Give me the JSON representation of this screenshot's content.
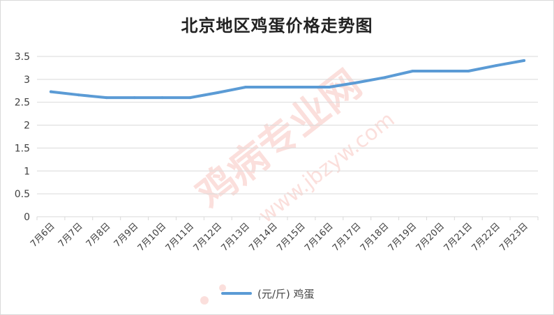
{
  "colors": {
    "series": "#5b9bd5",
    "grid": "#d9d9d9",
    "text": "#404040",
    "watermark": "#e8412c"
  },
  "watermark": {
    "text": "鸡病专业网",
    "url": "www.jbzyw.com"
  },
  "chart_data": {
    "type": "line",
    "title": "北京地区鸡蛋价格走势图",
    "categories": [
      "7月6日",
      "7月7日",
      "7月8日",
      "7月9日",
      "7月10日",
      "7月11日",
      "7月12日",
      "7月13日",
      "7月14日",
      "7月15日",
      "7月16日",
      "7月17日",
      "7月18日",
      "7月19日",
      "7月20日",
      "7月21日",
      "7月22日",
      "7月23日"
    ],
    "series": [
      {
        "name": "(元/斤) 鸡蛋",
        "values": [
          2.73,
          2.66,
          2.6,
          2.6,
          2.6,
          2.6,
          2.71,
          2.83,
          2.83,
          2.83,
          2.83,
          2.93,
          3.04,
          3.18,
          3.18,
          3.18,
          3.3,
          3.41
        ]
      }
    ],
    "ylim": [
      0,
      3.5
    ],
    "yticks": [
      "0",
      "0.5",
      "1",
      "1.5",
      "2",
      "2.5",
      "3",
      "3.5"
    ],
    "xlabel": "",
    "ylabel": "",
    "grid": true,
    "legend": "bottom"
  }
}
